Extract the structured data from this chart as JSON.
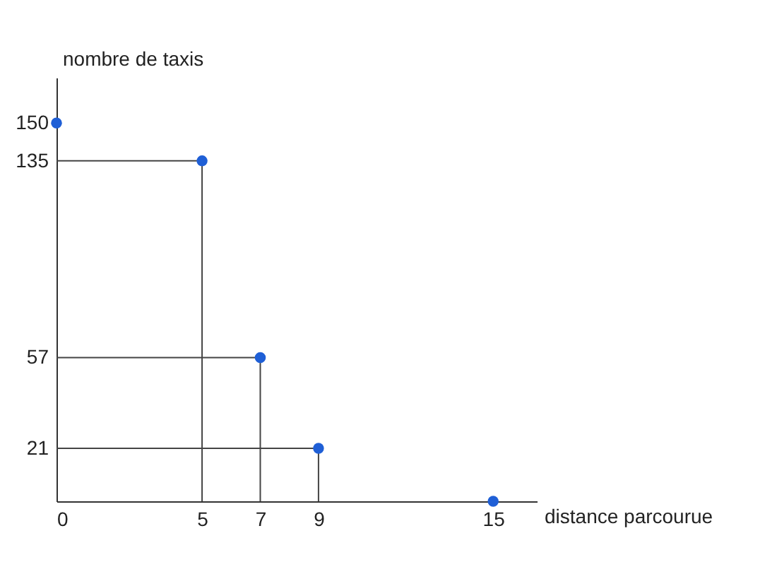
{
  "chart_data": {
    "type": "scatter",
    "xlabel": "distance parcourue",
    "ylabel": "nombre de taxis",
    "x": [
      0,
      5,
      7,
      9,
      15
    ],
    "series": [
      {
        "color": "#1f5fd6",
        "marker": "circle",
        "values": [
          150,
          135,
          57,
          21,
          0
        ]
      },
      {
        "type": "line",
        "color": "#444444",
        "marker": "none",
        "x": [
          0,
          5,
          5
        ],
        "values": [
          135,
          135,
          0
        ]
      },
      {
        "type": "line",
        "color": "#444444",
        "marker": "none",
        "x": [
          0,
          7,
          7
        ],
        "values": [
          57,
          57,
          0
        ]
      },
      {
        "type": "line",
        "color": "#444444",
        "marker": "none",
        "x": [
          0,
          9,
          9
        ],
        "values": [
          21,
          21,
          0
        ]
      }
    ],
    "xlim": [
      0,
      16.5
    ],
    "xticks": [
      0,
      5,
      7,
      9,
      15
    ],
    "ylim": [
      0,
      168
    ],
    "yticks": [
      21,
      57,
      135,
      150
    ],
    "grid": false
  }
}
